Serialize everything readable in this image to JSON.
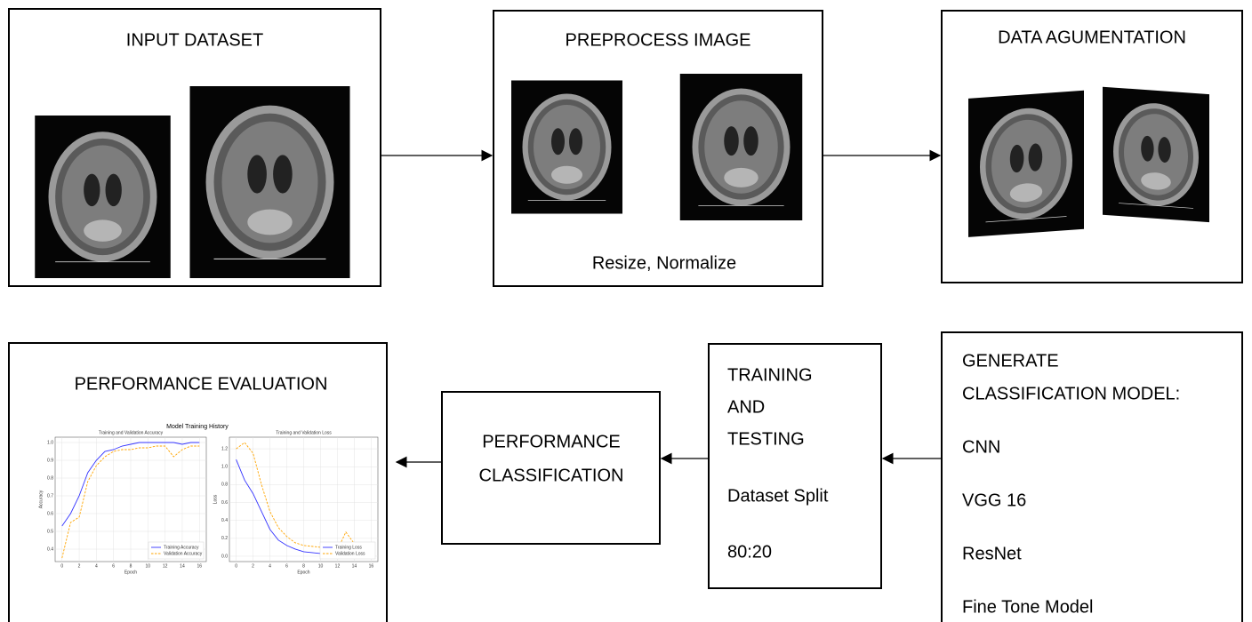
{
  "nodes": [
    {
      "title": "INPUT DATASET"
    },
    {
      "title": "PREPROCESS IMAGE",
      "caption": "Resize, Normalize"
    },
    {
      "title": "DATA AGUMENTATION"
    },
    {
      "lines": [
        "GENERATE",
        "CLASSIFICATION MODEL:",
        "CNN",
        "VGG 16",
        "ResNet",
        "Fine Tone Model"
      ]
    },
    {
      "lines": [
        "TRAINING",
        "AND",
        "TESTING",
        "Dataset Split",
        "80:20"
      ]
    },
    {
      "lines": [
        "PERFORMANCE",
        "CLASSIFICATION"
      ]
    },
    {
      "title": "PERFORMANCE EVALUATION"
    }
  ],
  "figure_title": "Model Training History",
  "chart_data": [
    {
      "type": "line",
      "title": "Training and Validation Accuracy",
      "x_label": "Epoch",
      "y_label": "Accuracy",
      "x": [
        0,
        1,
        2,
        3,
        4,
        5,
        6,
        7,
        8,
        9,
        10,
        11,
        12,
        13,
        14,
        15,
        16
      ],
      "xlim": [
        -0.8,
        16.8
      ],
      "xticks": [
        0,
        2,
        4,
        6,
        8,
        10,
        12,
        14,
        16
      ],
      "ylim": [
        0.33,
        1.03
      ],
      "yticks": [
        0.4,
        0.5,
        0.6,
        0.7,
        0.8,
        0.9,
        {
          "value": 1,
          "label": "1.0"
        }
      ],
      "grid": true,
      "legend": "lower right",
      "series": [
        {
          "name": "Training Accuracy",
          "color": "#3333ff",
          "linestyle": "solid",
          "values": [
            0.53,
            0.6,
            0.7,
            0.83,
            0.9,
            0.95,
            0.96,
            0.98,
            0.99,
            1,
            1,
            1,
            1,
            1,
            0.99,
            1,
            1
          ]
        },
        {
          "name": "Validation Accuracy",
          "color": "#ffa500",
          "linestyle": "dashed",
          "values": [
            0.35,
            0.55,
            0.58,
            0.78,
            0.87,
            0.92,
            0.95,
            0.96,
            0.96,
            0.97,
            0.97,
            0.98,
            0.98,
            0.92,
            0.96,
            0.98,
            0.98
          ]
        }
      ]
    },
    {
      "type": "line",
      "title": "Training and Validation Loss",
      "x_label": "Epoch",
      "y_label": "Loss",
      "x": [
        0,
        1,
        2,
        3,
        4,
        5,
        6,
        7,
        8,
        9,
        10,
        11,
        12,
        13,
        14,
        15,
        16
      ],
      "xlim": [
        -0.8,
        16.8
      ],
      "xticks": [
        0,
        2,
        4,
        6,
        8,
        10,
        12,
        14,
        16
      ],
      "ylim": [
        -0.06,
        1.33
      ],
      "yticks": [
        {
          "value": 0,
          "label": "0.0"
        },
        0.2,
        0.4,
        0.6,
        0.8,
        {
          "value": 1,
          "label": "1.0"
        },
        1.2
      ],
      "grid": true,
      "legend": "lower right",
      "series": [
        {
          "name": "Training Loss",
          "color": "#3333ff",
          "linestyle": "solid",
          "values": [
            1.08,
            0.85,
            0.7,
            0.5,
            0.3,
            0.18,
            0.12,
            0.08,
            0.05,
            0.04,
            0.03,
            0.02,
            0.02,
            0.02,
            0.05,
            0.02,
            0.01
          ]
        },
        {
          "name": "Validation Loss",
          "color": "#ffa500",
          "linestyle": "dashed",
          "values": [
            1.2,
            1.27,
            1.15,
            0.8,
            0.5,
            0.32,
            0.22,
            0.15,
            0.12,
            0.11,
            0.1,
            0.08,
            0.07,
            0.27,
            0.14,
            0.08,
            0.07
          ]
        }
      ]
    }
  ]
}
